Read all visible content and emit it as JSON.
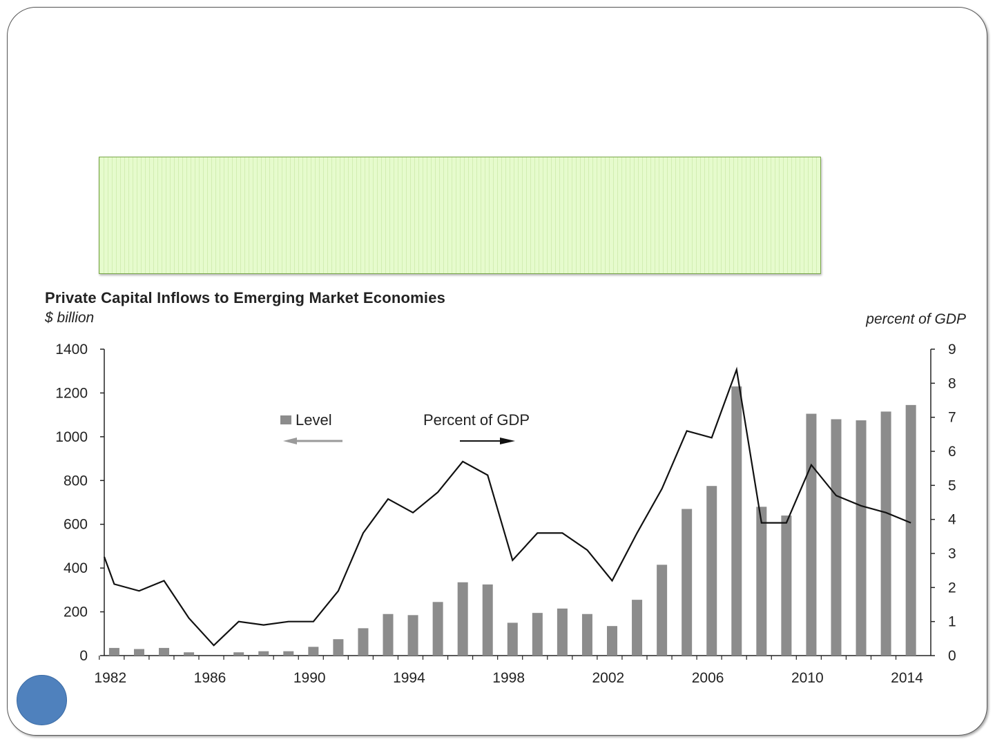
{
  "slide": {
    "title_box_text": ""
  },
  "chart_data": {
    "type": "bar+line",
    "title": "Private Capital Inflows to Emerging Market Economies",
    "left_unit": "$ billion",
    "right_unit": "percent of GDP",
    "x_tick_labels": [
      "1982",
      "1986",
      "1990",
      "1994",
      "1998",
      "2002",
      "2006",
      "2010",
      "2014"
    ],
    "y_left_ticks": [
      0,
      200,
      400,
      600,
      800,
      1000,
      1200,
      1400
    ],
    "y_right_ticks": [
      0,
      1,
      2,
      3,
      4,
      5,
      6,
      7,
      8,
      9
    ],
    "ylim_left": [
      0,
      1400
    ],
    "ylim_right": [
      0,
      9
    ],
    "xlim": [
      1981.6,
      2014.8
    ],
    "years": [
      1981.6,
      1982,
      1983,
      1984,
      1985,
      1986,
      1987,
      1988,
      1989,
      1990,
      1991,
      1992,
      1993,
      1994,
      1995,
      1996,
      1997,
      1998,
      1999,
      2000,
      2001,
      2002,
      2003,
      2004,
      2005,
      2006,
      2007,
      2008,
      2009,
      2010,
      2011,
      2012,
      2013,
      2014
    ],
    "series": [
      {
        "name": "Level",
        "axis": "left",
        "type": "bar",
        "color": "#8c8c8c",
        "x": [
          1982,
          1983,
          1984,
          1985,
          1987,
          1988,
          1989,
          1990,
          1991,
          1992,
          1993,
          1994,
          1995,
          1996,
          1997,
          1998,
          1999,
          2000,
          2001,
          2002,
          2003,
          2004,
          2005,
          2006,
          2007,
          2008,
          2009,
          2010,
          2011,
          2012,
          2013,
          2014
        ],
        "values": [
          35,
          30,
          35,
          15,
          15,
          20,
          20,
          40,
          75,
          125,
          190,
          185,
          245,
          335,
          325,
          150,
          195,
          215,
          190,
          135,
          255,
          415,
          670,
          775,
          1230,
          680,
          640,
          1105,
          1080,
          1075,
          1115,
          1145
        ]
      },
      {
        "name": "Percent of GDP",
        "axis": "right",
        "type": "line",
        "color": "#111111",
        "x": [
          1981.6,
          1982,
          1983,
          1984,
          1985,
          1986,
          1987,
          1988,
          1989,
          1990,
          1991,
          1992,
          1993,
          1994,
          1995,
          1996,
          1997,
          1998,
          1999,
          2000,
          2001,
          2002,
          2003,
          2004,
          2005,
          2006,
          2007,
          2008,
          2009,
          2010,
          2011,
          2012,
          2013,
          2014
        ],
        "values": [
          2.9,
          2.1,
          1.9,
          2.2,
          1.1,
          0.3,
          1.0,
          0.9,
          1.0,
          1.0,
          1.9,
          3.6,
          4.6,
          4.2,
          4.8,
          5.7,
          5.3,
          2.8,
          3.6,
          3.6,
          3.1,
          2.2,
          3.6,
          4.9,
          6.6,
          6.4,
          8.4,
          3.9,
          3.9,
          5.6,
          4.7,
          4.4,
          4.2,
          3.9
        ]
      }
    ],
    "legend": [
      {
        "label": "Level",
        "arrow": "left",
        "color": "#8c8c8c"
      },
      {
        "label": "Percent of GDP",
        "arrow": "right",
        "color": "#111111"
      }
    ],
    "grid": false
  }
}
